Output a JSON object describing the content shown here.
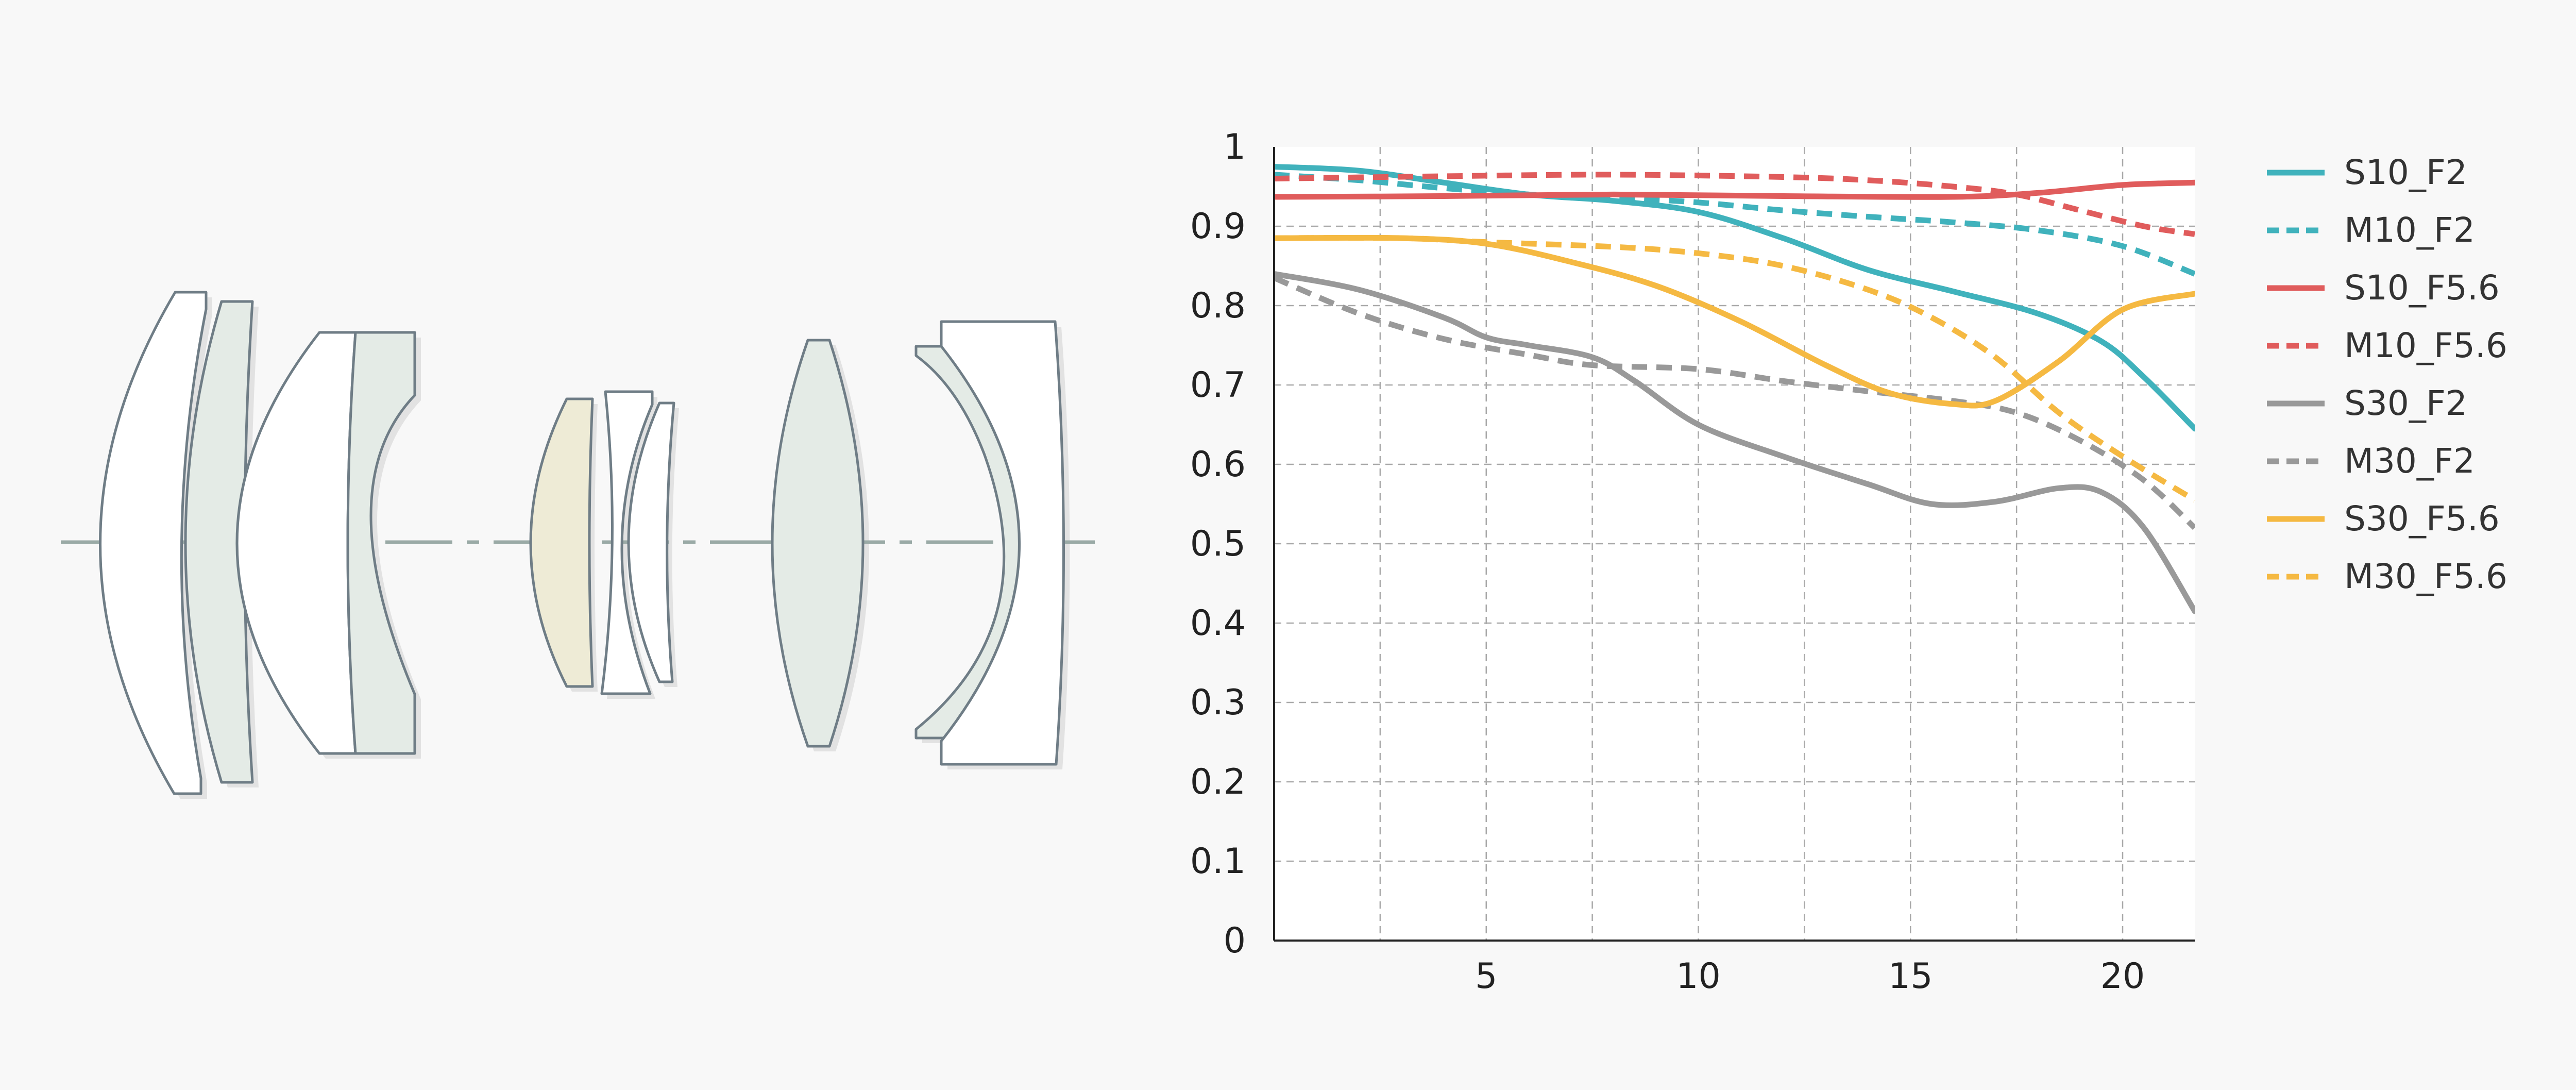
{
  "lens_diagram": {
    "colors": {
      "outline": "#6f7d86",
      "axis": "#9aaaa6",
      "glass_clear": "#ffffff",
      "glass_green": "#e4ebe6",
      "glass_yellow": "#eeebd6",
      "shadow": "#e2e2e2"
    }
  },
  "chart_data": {
    "type": "line",
    "xlim": [
      0,
      21.7
    ],
    "ylim": [
      0,
      1
    ],
    "xticks": [
      "5",
      "10",
      "15",
      "20"
    ],
    "xtick_values": [
      5,
      10,
      15,
      20
    ],
    "yticks": [
      "0",
      "0.1",
      "0.2",
      "0.3",
      "0.4",
      "0.5",
      "0.6",
      "0.7",
      "0.8",
      "0.9",
      "1"
    ],
    "ytick_values": [
      0,
      0.1,
      0.2,
      0.3,
      0.4,
      0.5,
      0.6,
      0.7,
      0.8,
      0.9,
      1
    ],
    "grid_x": [
      2.5,
      5,
      7.5,
      10,
      12.5,
      15,
      17.5,
      20
    ],
    "grid_y": [
      0.1,
      0.2,
      0.3,
      0.4,
      0.5,
      0.6,
      0.7,
      0.8,
      0.9
    ],
    "grid": true,
    "legend_position": "right",
    "series": [
      {
        "name": "S10_F2",
        "color": "#40b2bc",
        "dashed": false,
        "x": [
          0,
          2,
          4,
          6,
          8,
          10,
          12,
          14,
          16,
          18,
          19.5,
          20.5,
          21.7
        ],
        "y": [
          0.975,
          0.97,
          0.955,
          0.94,
          0.932,
          0.918,
          0.885,
          0.845,
          0.818,
          0.79,
          0.755,
          0.71,
          0.645
        ]
      },
      {
        "name": "M10_F2",
        "color": "#40b2bc",
        "dashed": true,
        "x": [
          0,
          2,
          4,
          6,
          8,
          10,
          12,
          14,
          16,
          18,
          20,
          21.7
        ],
        "y": [
          0.965,
          0.958,
          0.948,
          0.94,
          0.936,
          0.93,
          0.92,
          0.912,
          0.905,
          0.895,
          0.875,
          0.84
        ]
      },
      {
        "name": "S10_F5.6",
        "color": "#e05c5c",
        "dashed": false,
        "x": [
          0,
          4,
          8,
          12,
          16,
          18,
          20,
          21.7
        ],
        "y": [
          0.937,
          0.938,
          0.94,
          0.938,
          0.937,
          0.942,
          0.952,
          0.955
        ]
      },
      {
        "name": "M10_F5.6",
        "color": "#e05c5c",
        "dashed": true,
        "x": [
          0,
          4,
          8,
          12,
          14,
          16,
          17.5,
          19,
          20.5,
          21.7
        ],
        "y": [
          0.96,
          0.963,
          0.965,
          0.962,
          0.958,
          0.95,
          0.94,
          0.92,
          0.9,
          0.89
        ]
      },
      {
        "name": "S30_F2",
        "color": "#999999",
        "dashed": false,
        "x": [
          0,
          2,
          4,
          5,
          6,
          7.5,
          8.5,
          10,
          12,
          14,
          15.5,
          17,
          18.5,
          19.5,
          20.5,
          21.7
        ],
        "y": [
          0.84,
          0.82,
          0.785,
          0.76,
          0.75,
          0.735,
          0.705,
          0.65,
          0.61,
          0.575,
          0.55,
          0.553,
          0.57,
          0.565,
          0.52,
          0.415
        ]
      },
      {
        "name": "M30_F2",
        "color": "#999999",
        "dashed": true,
        "x": [
          0,
          2,
          4,
          6,
          7.5,
          10,
          12,
          14,
          16,
          17.5,
          19,
          20.5,
          21.7
        ],
        "y": [
          0.835,
          0.79,
          0.758,
          0.738,
          0.725,
          0.72,
          0.705,
          0.692,
          0.68,
          0.665,
          0.63,
          0.58,
          0.52
        ]
      },
      {
        "name": "S30_F5.6",
        "color": "#f5b942",
        "dashed": false,
        "x": [
          0,
          3,
          5,
          7,
          9,
          11,
          13,
          14.5,
          16,
          17,
          18.5,
          20,
          21.7
        ],
        "y": [
          0.885,
          0.885,
          0.878,
          0.855,
          0.825,
          0.78,
          0.725,
          0.69,
          0.676,
          0.68,
          0.73,
          0.795,
          0.815
        ]
      },
      {
        "name": "M30_F5.6",
        "color": "#f5b942",
        "dashed": true,
        "x": [
          0,
          3,
          5,
          8,
          10,
          12,
          14,
          15.5,
          17,
          18.5,
          20,
          21.7
        ],
        "y": [
          0.885,
          0.885,
          0.88,
          0.874,
          0.866,
          0.85,
          0.82,
          0.785,
          0.735,
          0.665,
          0.61,
          0.555
        ]
      }
    ]
  }
}
